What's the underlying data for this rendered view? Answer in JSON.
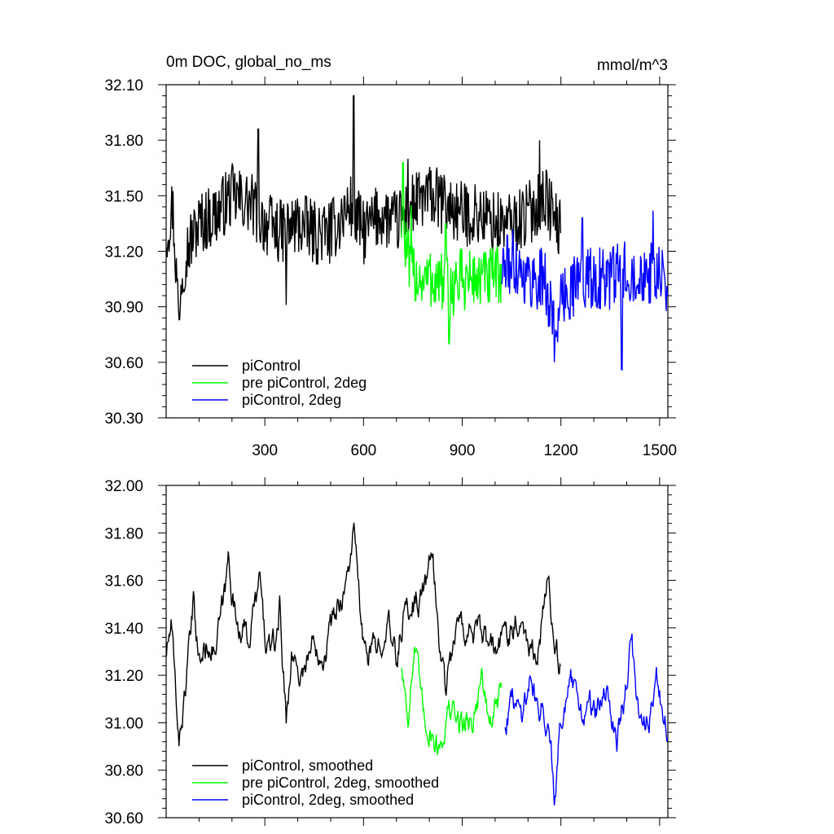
{
  "figure": {
    "title_left": "0m DOC, global_no_ms",
    "title_right": "mmol/m^3"
  },
  "chart_data": [
    {
      "type": "line",
      "xlim": [
        0,
        1525
      ],
      "ylim": [
        30.3,
        32.1
      ],
      "yticks": [
        "30.30",
        "30.60",
        "30.90",
        "31.20",
        "31.50",
        "31.80",
        "32.10"
      ],
      "xticks": [
        "300",
        "600",
        "900",
        "1200",
        "1500"
      ],
      "legend_position": "bottom-left",
      "series": [
        {
          "name": "piControl",
          "color": "#000000",
          "x_start": 1,
          "x_end": 1200,
          "anchors": [
            [
              1,
              31.3
            ],
            [
              20,
              31.45
            ],
            [
              35,
              30.95
            ],
            [
              60,
              31.2
            ],
            [
              100,
              31.35
            ],
            [
              150,
              31.4
            ],
            [
              200,
              31.5
            ],
            [
              260,
              31.45
            ],
            [
              300,
              31.35
            ],
            [
              350,
              31.3
            ],
            [
              400,
              31.35
            ],
            [
              450,
              31.3
            ],
            [
              500,
              31.3
            ],
            [
              560,
              31.45
            ],
            [
              600,
              31.3
            ],
            [
              650,
              31.4
            ],
            [
              700,
              31.35
            ],
            [
              750,
              31.45
            ],
            [
              800,
              31.5
            ],
            [
              850,
              31.45
            ],
            [
              900,
              31.4
            ],
            [
              950,
              31.4
            ],
            [
              1000,
              31.35
            ],
            [
              1050,
              31.35
            ],
            [
              1100,
              31.4
            ],
            [
              1150,
              31.5
            ],
            [
              1200,
              31.3
            ]
          ],
          "noise": 0.11,
          "spikes": [
            [
              570,
              32.04
            ],
            [
              735,
              31.7
            ],
            [
              280,
              31.86
            ],
            [
              1135,
              31.8
            ],
            [
              40,
              30.83
            ],
            [
              365,
              30.91
            ]
          ]
        },
        {
          "name": "pre piControl, 2deg",
          "color": "#00ff00",
          "x_start": 715,
          "x_end": 1020,
          "anchors": [
            [
              715,
              31.35
            ],
            [
              740,
              31.1
            ],
            [
              780,
              31.05
            ],
            [
              820,
              31.05
            ],
            [
              860,
              31.0
            ],
            [
              900,
              31.05
            ],
            [
              950,
              31.05
            ],
            [
              1000,
              31.05
            ],
            [
              1020,
              31.1
            ]
          ],
          "noise": 0.11,
          "spikes": [
            [
              720,
              31.68
            ],
            [
              745,
              31.45
            ],
            [
              860,
              30.7
            ],
            [
              850,
              31.35
            ]
          ]
        },
        {
          "name": "piControl, 2deg",
          "color": "#0000ff",
          "x_start": 1020,
          "x_end": 1525,
          "anchors": [
            [
              1020,
              31.1
            ],
            [
              1060,
              31.15
            ],
            [
              1100,
              31.05
            ],
            [
              1150,
              31.05
            ],
            [
              1180,
              30.8
            ],
            [
              1220,
              31.0
            ],
            [
              1260,
              31.05
            ],
            [
              1300,
              31.05
            ],
            [
              1350,
              31.05
            ],
            [
              1400,
              31.1
            ],
            [
              1450,
              31.1
            ],
            [
              1500,
              31.05
            ],
            [
              1525,
              31.0
            ]
          ],
          "noise": 0.11,
          "spikes": [
            [
              1180,
              30.6
            ],
            [
              1385,
              30.56
            ],
            [
              1480,
              31.42
            ],
            [
              1265,
              31.38
            ]
          ]
        }
      ]
    },
    {
      "type": "line",
      "xlim": [
        0,
        1525
      ],
      "ylim": [
        30.6,
        32.0
      ],
      "yticks": [
        "30.60",
        "30.80",
        "31.00",
        "31.20",
        "31.40",
        "31.60",
        "31.80",
        "32.00"
      ],
      "xticks": [],
      "legend_position": "bottom-left",
      "series": [
        {
          "name": "piControl, smoothed",
          "color": "#000000",
          "x_start": 1,
          "x_end": 1200,
          "anchors": [
            [
              1,
              31.3
            ],
            [
              15,
              31.4
            ],
            [
              25,
              31.2
            ],
            [
              40,
              30.93
            ],
            [
              55,
              31.1
            ],
            [
              70,
              31.3
            ],
            [
              85,
              31.5
            ],
            [
              100,
              31.25
            ],
            [
              130,
              31.35
            ],
            [
              150,
              31.3
            ],
            [
              180,
              31.55
            ],
            [
              190,
              31.7
            ],
            [
              210,
              31.45
            ],
            [
              250,
              31.35
            ],
            [
              285,
              31.6
            ],
            [
              300,
              31.35
            ],
            [
              330,
              31.3
            ],
            [
              345,
              31.5
            ],
            [
              365,
              31.0
            ],
            [
              380,
              31.3
            ],
            [
              410,
              31.2
            ],
            [
              450,
              31.35
            ],
            [
              480,
              31.3
            ],
            [
              510,
              31.45
            ],
            [
              550,
              31.6
            ],
            [
              570,
              31.81
            ],
            [
              600,
              31.3
            ],
            [
              640,
              31.3
            ],
            [
              670,
              31.45
            ],
            [
              700,
              31.25
            ],
            [
              720,
              31.45
            ],
            [
              750,
              31.5
            ],
            [
              780,
              31.55
            ],
            [
              810,
              31.7
            ],
            [
              830,
              31.35
            ],
            [
              850,
              31.15
            ],
            [
              880,
              31.4
            ],
            [
              920,
              31.4
            ],
            [
              960,
              31.35
            ],
            [
              1000,
              31.3
            ],
            [
              1040,
              31.4
            ],
            [
              1080,
              31.45
            ],
            [
              1110,
              31.3
            ],
            [
              1135,
              31.35
            ],
            [
              1160,
              31.6
            ],
            [
              1180,
              31.35
            ],
            [
              1200,
              31.22
            ]
          ],
          "noise": 0.045,
          "spikes": []
        },
        {
          "name": "pre piControl, 2deg, smoothed",
          "color": "#00ff00",
          "x_start": 715,
          "x_end": 1020,
          "anchors": [
            [
              715,
              31.25
            ],
            [
              735,
              31.05
            ],
            [
              755,
              31.3
            ],
            [
              780,
              31.05
            ],
            [
              810,
              30.95
            ],
            [
              830,
              30.9
            ],
            [
              860,
              31.05
            ],
            [
              890,
              31.0
            ],
            [
              930,
              31.0
            ],
            [
              960,
              31.2
            ],
            [
              980,
              31.0
            ],
            [
              1000,
              31.05
            ],
            [
              1020,
              31.12
            ]
          ],
          "noise": 0.045,
          "spikes": []
        },
        {
          "name": "piControl, 2deg, smoothed",
          "color": "#0000ff",
          "x_start": 1030,
          "x_end": 1525,
          "anchors": [
            [
              1030,
              31.0
            ],
            [
              1050,
              31.1
            ],
            [
              1080,
              31.05
            ],
            [
              1110,
              31.2
            ],
            [
              1130,
              31.05
            ],
            [
              1150,
              31.05
            ],
            [
              1170,
              30.95
            ],
            [
              1180,
              30.7
            ],
            [
              1195,
              31.0
            ],
            [
              1230,
              31.15
            ],
            [
              1260,
              31.05
            ],
            [
              1300,
              31.05
            ],
            [
              1340,
              31.1
            ],
            [
              1370,
              30.95
            ],
            [
              1390,
              31.1
            ],
            [
              1415,
              31.32
            ],
            [
              1440,
              31.0
            ],
            [
              1470,
              31.05
            ],
            [
              1490,
              31.2
            ],
            [
              1510,
              31.0
            ],
            [
              1525,
              30.95
            ]
          ],
          "noise": 0.045,
          "spikes": [
            [
              1183,
              30.69
            ]
          ]
        }
      ]
    }
  ]
}
